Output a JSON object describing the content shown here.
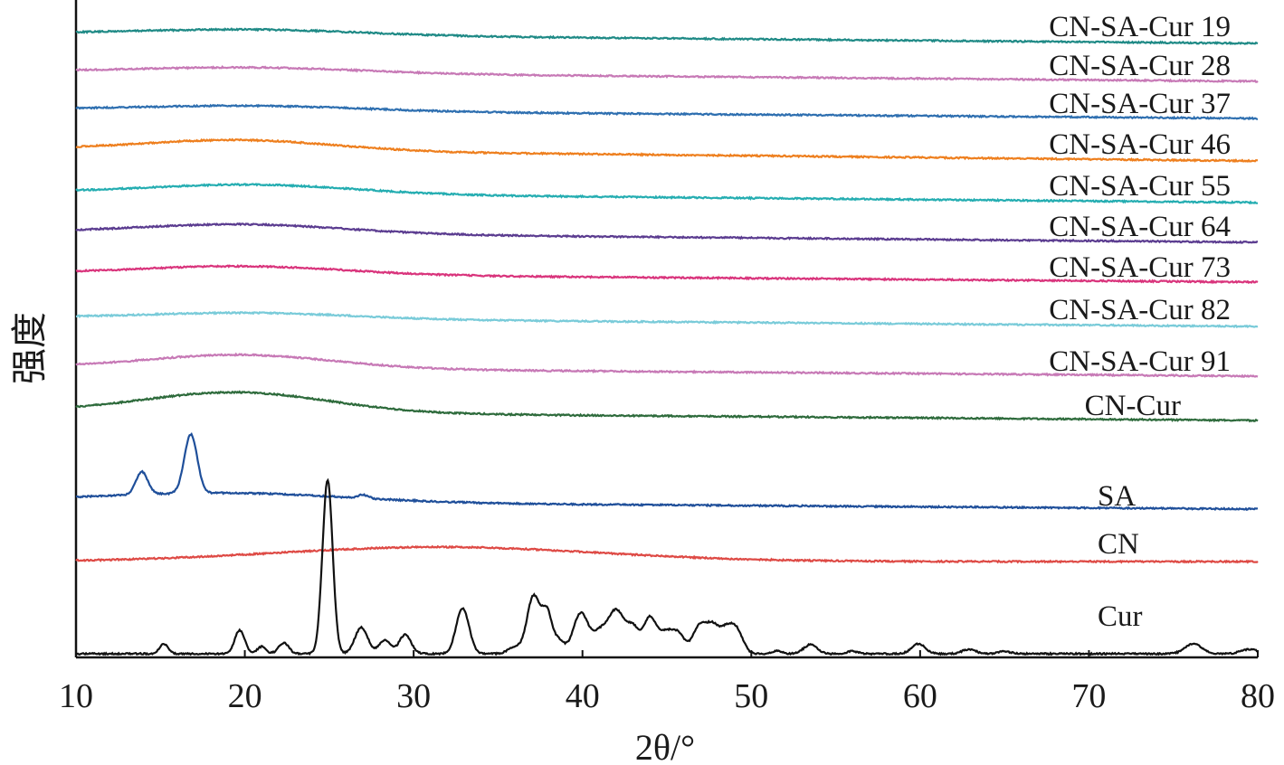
{
  "chart_data": {
    "type": "line",
    "title": "",
    "xlabel": "2θ/°",
    "ylabel": "强度",
    "xlim": [
      10,
      80
    ],
    "xticks": [
      "10",
      "20",
      "30",
      "40",
      "50",
      "60",
      "70",
      "80"
    ],
    "y_ticks_shown": false,
    "grid": false,
    "legend": "none (series labelled directly at the right end of each curve)",
    "series": [
      {
        "name": "CN-SA-Cur 19",
        "color": "#1f8a86",
        "start": 0.022,
        "end": 0.0,
        "hump_center": 20.5,
        "hump_height": 0.012,
        "hump_width": 6.5
      },
      {
        "name": "CN-SA-Cur 28",
        "color": "#c779b6",
        "start": 0.022,
        "end": 0.0,
        "hump_center": 20.5,
        "hump_height": 0.012,
        "hump_width": 6.5
      },
      {
        "name": "CN-SA-Cur 37",
        "color": "#2e6fb0",
        "start": 0.02,
        "end": 0.0,
        "hump_center": 20.5,
        "hump_height": 0.011,
        "hump_width": 6.5
      },
      {
        "name": "CN-SA-Cur 46",
        "color": "#ee7f1e",
        "start": 0.027,
        "end": 0.0,
        "hump_center": 19.8,
        "hump_height": 0.023,
        "hump_width": 5.5
      },
      {
        "name": "CN-SA-Cur 55",
        "color": "#24adb1",
        "start": 0.023,
        "end": 0.0,
        "hump_center": 20.5,
        "hump_height": 0.02,
        "hump_width": 6.0
      },
      {
        "name": "CN-SA-Cur 64",
        "color": "#5b3c90",
        "start": 0.023,
        "end": 0.0,
        "hump_center": 20.0,
        "hump_height": 0.02,
        "hump_width": 6.0
      },
      {
        "name": "CN-SA-Cur 73",
        "color": "#d9347c",
        "start": 0.02,
        "end": 0.0,
        "hump_center": 20.0,
        "hump_height": 0.018,
        "hump_width": 6.0
      },
      {
        "name": "CN-SA-Cur 82",
        "color": "#79cbd9",
        "start": 0.02,
        "end": 0.0,
        "hump_center": 20.5,
        "hump_height": 0.013,
        "hump_width": 6.0
      },
      {
        "name": "CN-SA-Cur 91",
        "color": "#c779b6",
        "start": 0.02,
        "end": 0.0,
        "hump_center": 19.8,
        "hump_height": 0.03,
        "hump_width": 5.5
      },
      {
        "name": "CN-Cur",
        "color": "#2e6b3c",
        "start": 0.02,
        "end": 0.0,
        "hump_center": 19.5,
        "hump_height": 0.045,
        "hump_width": 5.5
      },
      {
        "name": "SA",
        "color": "#1f4f9a",
        "start": 0.018,
        "end": 0.0,
        "hump_center": 19.0,
        "hump_height": 0.02,
        "hump_width": 7.0,
        "peaks": [
          [
            13.9,
            0.05,
            0.35
          ],
          [
            16.8,
            0.13,
            0.38
          ],
          [
            27.0,
            0.008,
            0.3
          ]
        ]
      },
      {
        "name": "CN",
        "color": "#de4a45",
        "start": 0.0,
        "end": 0.0,
        "hump_center": 31.5,
        "hump_height": 0.032,
        "hump_width": 9.5
      },
      {
        "name": "Cur",
        "color": "#111111",
        "start": 0.0,
        "end": 0.0,
        "hump_center": 0,
        "hump_height": 0,
        "hump_width": 1,
        "peaks": [
          [
            15.2,
            0.022,
            0.25
          ],
          [
            19.7,
            0.052,
            0.3
          ],
          [
            21.0,
            0.016,
            0.25
          ],
          [
            22.3,
            0.024,
            0.3
          ],
          [
            24.9,
            0.385,
            0.3
          ],
          [
            26.9,
            0.058,
            0.38
          ],
          [
            28.3,
            0.03,
            0.35
          ],
          [
            29.5,
            0.042,
            0.35
          ],
          [
            32.9,
            0.101,
            0.38
          ],
          [
            36.0,
            0.015,
            0.4
          ],
          [
            37.1,
            0.127,
            0.38
          ],
          [
            37.9,
            0.088,
            0.3
          ],
          [
            38.6,
            0.028,
            0.3
          ],
          [
            39.9,
            0.09,
            0.45
          ],
          [
            41.0,
            0.04,
            0.4
          ],
          [
            42.0,
            0.096,
            0.5
          ],
          [
            43.0,
            0.05,
            0.35
          ],
          [
            44.0,
            0.08,
            0.4
          ],
          [
            45.0,
            0.045,
            0.4
          ],
          [
            45.7,
            0.038,
            0.35
          ],
          [
            47.0,
            0.065,
            0.45
          ],
          [
            47.7,
            0.03,
            0.3
          ],
          [
            48.5,
            0.06,
            0.55
          ],
          [
            49.2,
            0.03,
            0.35
          ],
          [
            51.5,
            0.006,
            0.3
          ],
          [
            53.5,
            0.02,
            0.4
          ],
          [
            56.0,
            0.006,
            0.3
          ],
          [
            59.9,
            0.022,
            0.4
          ],
          [
            62.9,
            0.01,
            0.4
          ],
          [
            65.0,
            0.005,
            0.4
          ],
          [
            76.2,
            0.022,
            0.5
          ],
          [
            79.5,
            0.01,
            0.5
          ]
        ]
      }
    ]
  }
}
